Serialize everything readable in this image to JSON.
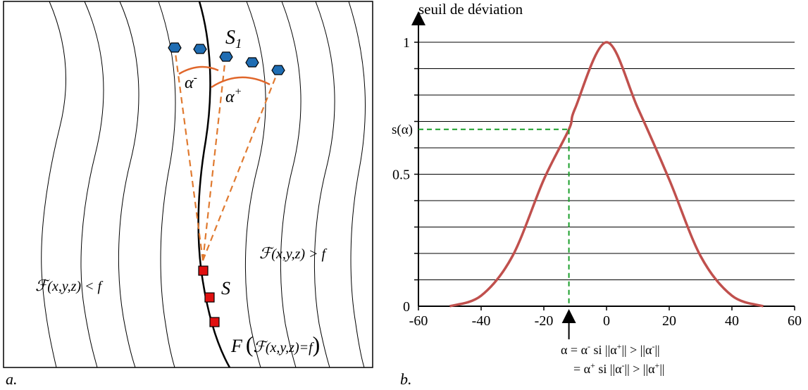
{
  "panel_a": {
    "panel_label": "a.",
    "set_label_main": "S",
    "set_label_sub": "1",
    "alpha_minus": "α",
    "alpha_minus_sup": "-",
    "alpha_plus": "α",
    "alpha_plus_sup": "+",
    "s_label": "S",
    "region_greater": "(x,y,z) > f",
    "region_less": "(x,y,z) < f",
    "script_f": "ℱ",
    "curve_F": "F",
    "curve_paren_open": "(",
    "curve_expr": "(x,y,z)=f",
    "curve_paren_close": ")",
    "colors": {
      "points": "#1f6db3",
      "squares": "#e01010",
      "dashed": "#e07a30",
      "arc": "#e0662a"
    }
  },
  "panel_b": {
    "panel_label": "b.",
    "threshold_label": "s(α)",
    "annotation_line1": "α = α",
    "annotation_line1_sup": "-",
    "annotation_line1_rest": "  si ||α",
    "annotation_line1_sup2": "+",
    "annotation_line1_mid": "|| > ||α",
    "annotation_line1_sup3": "-",
    "annotation_line1_end": "||",
    "annotation_line2": "= α",
    "annotation_line2_sup": "+",
    "annotation_line2_rest": " si ||α",
    "annotation_line2_sup2": "-",
    "annotation_line2_mid": "|| > ||α",
    "annotation_line2_sup3": "+",
    "annotation_line2_end": "||",
    "colors": {
      "curve": "#c0504d",
      "threshold": "#1a9e2a"
    }
  },
  "chart_data": {
    "type": "line",
    "title": "",
    "ylabel": "seuil de déviation",
    "xlabel": "",
    "xlim": [
      -60,
      60
    ],
    "ylim": [
      0,
      1
    ],
    "x_ticks": [
      "-60",
      "-40",
      "-20",
      "0",
      "20",
      "40",
      "60"
    ],
    "y_ticks": [
      "0",
      "0.5",
      "1"
    ],
    "grid": true,
    "series": [
      {
        "values_x": [
          -50,
          -40,
          -30,
          -20,
          -12,
          -10,
          0,
          10,
          20,
          30,
          40,
          50
        ],
        "values_y": [
          0.0,
          0.04,
          0.19,
          0.48,
          0.67,
          0.75,
          1.0,
          0.75,
          0.48,
          0.19,
          0.04,
          0.0
        ]
      }
    ],
    "threshold": {
      "alpha": -12,
      "s_alpha": 0.67
    }
  }
}
